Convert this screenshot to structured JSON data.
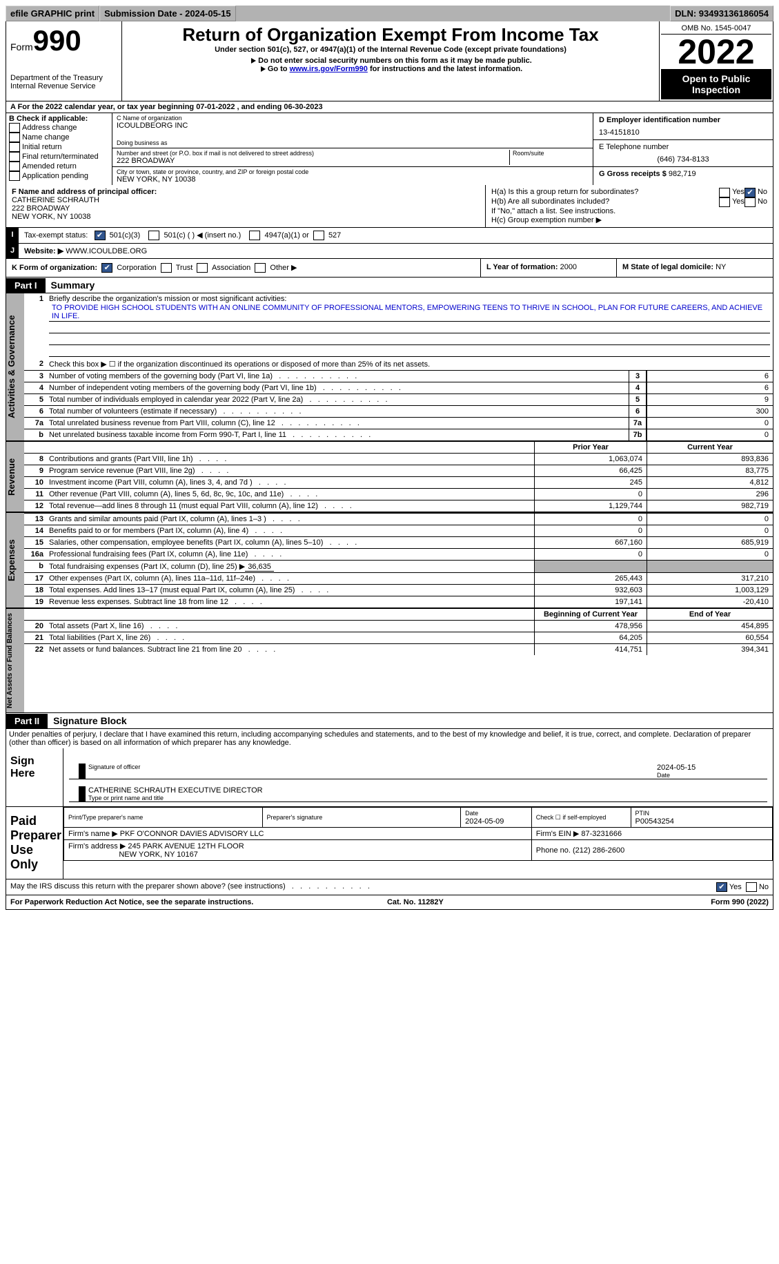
{
  "topbar": {
    "efile": "efile GRAPHIC print",
    "submission_label": "Submission Date - 2024-05-15",
    "dln_label": "DLN: 93493136186054"
  },
  "header": {
    "form_word": "Form",
    "form_num": "990",
    "dept": "Department of the Treasury\nInternal Revenue Service",
    "title": "Return of Organization Exempt From Income Tax",
    "subtitle": "Under section 501(c), 527, or 4947(a)(1) of the Internal Revenue Code (except private foundations)",
    "note1": "Do not enter social security numbers on this form as it may be made public.",
    "note2_pre": "Go to ",
    "note2_link": "www.irs.gov/Form990",
    "note2_post": " for instructions and the latest information.",
    "omb": "OMB No. 1545-0047",
    "year": "2022",
    "inspect": "Open to Public Inspection"
  },
  "line_a": "A For the 2022 calendar year, or tax year beginning 07-01-2022   , and ending 06-30-2023",
  "col_b": {
    "hdr": "B Check if applicable:",
    "items": [
      "Address change",
      "Name change",
      "Initial return",
      "Final return/terminated",
      "Amended return",
      "Application pending"
    ]
  },
  "col_c": {
    "name_lbl": "C Name of organization",
    "name": "ICOULDBEORG INC",
    "dba_lbl": "Doing business as",
    "addr_lbl": "Number and street (or P.O. box if mail is not delivered to street address)",
    "room_lbl": "Room/suite",
    "addr": "222 BROADWAY",
    "city_lbl": "City or town, state or province, country, and ZIP or foreign postal code",
    "city": "NEW YORK, NY  10038"
  },
  "col_d": {
    "ein_lbl": "D Employer identification number",
    "ein": "13-4151810",
    "tel_lbl": "E Telephone number",
    "tel": "(646) 734-8133",
    "gross_lbl": "G Gross receipts $",
    "gross": "982,719"
  },
  "fh": {
    "f_lbl": "F  Name and address of principal officer:",
    "f_name": "CATHERINE SCHRAUTH",
    "f_addr1": "222 BROADWAY",
    "f_addr2": "NEW YORK, NY  10038",
    "ha": "H(a)  Is this a group return for subordinates?",
    "hb": "H(b)  Are all subordinates included?",
    "hb_note": "If \"No,\" attach a list. See instructions.",
    "hc": "H(c)  Group exemption number ▶",
    "yes": "Yes",
    "no": "No"
  },
  "i_lbl": "Tax-exempt status:",
  "i_opts": {
    "a": "501(c)(3)",
    "b": "501(c) (  ) ◀ (insert no.)",
    "c": "4947(a)(1) or",
    "d": "527"
  },
  "j_lbl": "Website: ▶",
  "j_val": "  WWW.ICOULDBE.ORG",
  "k": {
    "lbl": "K Form of organization:",
    "corp": "Corporation",
    "trust": "Trust",
    "assoc": "Association",
    "other": "Other ▶"
  },
  "l": {
    "lbl": "L Year of formation:",
    "val": "2000"
  },
  "m": {
    "lbl": "M State of legal domicile:",
    "val": "NY"
  },
  "part1": {
    "hdr": "Part I",
    "title": "Summary"
  },
  "summary": {
    "mission_lbl": "Briefly describe the organization's mission or most significant activities:",
    "mission": "TO PROVIDE HIGH SCHOOL STUDENTS WITH AN ONLINE COMMUNITY OF PROFESSIONAL MENTORS, EMPOWERING TEENS TO THRIVE IN SCHOOL, PLAN FOR FUTURE CAREERS, AND ACHIEVE IN LIFE.",
    "l2": "Check this box ▶ ☐  if the organization discontinued its operations or disposed of more than 25% of its net assets.",
    "side_ag": "Activities & Governance",
    "side_rev": "Revenue",
    "side_exp": "Expenses",
    "side_net": "Net Assets or Fund Balances",
    "prior": "Prior Year",
    "current": "Current Year",
    "boy": "Beginning of Current Year",
    "eoy": "End of Year",
    "rows_ag": [
      {
        "n": "3",
        "d": "Number of voting members of the governing body (Part VI, line 1a)",
        "b": "3",
        "v": "6"
      },
      {
        "n": "4",
        "d": "Number of independent voting members of the governing body (Part VI, line 1b)",
        "b": "4",
        "v": "6"
      },
      {
        "n": "5",
        "d": "Total number of individuals employed in calendar year 2022 (Part V, line 2a)",
        "b": "5",
        "v": "9"
      },
      {
        "n": "6",
        "d": "Total number of volunteers (estimate if necessary)",
        "b": "6",
        "v": "300"
      },
      {
        "n": "7a",
        "d": "Total unrelated business revenue from Part VIII, column (C), line 12",
        "b": "7a",
        "v": "0"
      },
      {
        "n": "b",
        "d": "Net unrelated business taxable income from Form 990-T, Part I, line 11",
        "b": "7b",
        "v": "0"
      }
    ],
    "rows_rev": [
      {
        "n": "8",
        "d": "Contributions and grants (Part VIII, line 1h)",
        "p": "1,063,074",
        "c": "893,836"
      },
      {
        "n": "9",
        "d": "Program service revenue (Part VIII, line 2g)",
        "p": "66,425",
        "c": "83,775"
      },
      {
        "n": "10",
        "d": "Investment income (Part VIII, column (A), lines 3, 4, and 7d )",
        "p": "245",
        "c": "4,812"
      },
      {
        "n": "11",
        "d": "Other revenue (Part VIII, column (A), lines 5, 6d, 8c, 9c, 10c, and 11e)",
        "p": "0",
        "c": "296"
      },
      {
        "n": "12",
        "d": "Total revenue—add lines 8 through 11 (must equal Part VIII, column (A), line 12)",
        "p": "1,129,744",
        "c": "982,719"
      }
    ],
    "rows_exp": [
      {
        "n": "13",
        "d": "Grants and similar amounts paid (Part IX, column (A), lines 1–3 )",
        "p": "0",
        "c": "0"
      },
      {
        "n": "14",
        "d": "Benefits paid to or for members (Part IX, column (A), line 4)",
        "p": "0",
        "c": "0"
      },
      {
        "n": "15",
        "d": "Salaries, other compensation, employee benefits (Part IX, column (A), lines 5–10)",
        "p": "667,160",
        "c": "685,919"
      },
      {
        "n": "16a",
        "d": "Professional fundraising fees (Part IX, column (A), line 11e)",
        "p": "0",
        "c": "0"
      }
    ],
    "row16b": {
      "n": "b",
      "d": "Total fundraising expenses (Part IX, column (D), line 25) ▶",
      "v": "36,635"
    },
    "rows_exp2": [
      {
        "n": "17",
        "d": "Other expenses (Part IX, column (A), lines 11a–11d, 11f–24e)",
        "p": "265,443",
        "c": "317,210"
      },
      {
        "n": "18",
        "d": "Total expenses. Add lines 13–17 (must equal Part IX, column (A), line 25)",
        "p": "932,603",
        "c": "1,003,129"
      },
      {
        "n": "19",
        "d": "Revenue less expenses. Subtract line 18 from line 12",
        "p": "197,141",
        "c": "-20,410"
      }
    ],
    "rows_net": [
      {
        "n": "20",
        "d": "Total assets (Part X, line 16)",
        "p": "478,956",
        "c": "454,895"
      },
      {
        "n": "21",
        "d": "Total liabilities (Part X, line 26)",
        "p": "64,205",
        "c": "60,554"
      },
      {
        "n": "22",
        "d": "Net assets or fund balances. Subtract line 21 from line 20",
        "p": "414,751",
        "c": "394,341"
      }
    ]
  },
  "part2": {
    "hdr": "Part II",
    "title": "Signature Block"
  },
  "perjury": "Under penalties of perjury, I declare that I have examined this return, including accompanying schedules and statements, and to the best of my knowledge and belief, it is true, correct, and complete. Declaration of preparer (other than officer) is based on all information of which preparer has any knowledge.",
  "sign": {
    "here": "Sign Here",
    "sig_lbl": "Signature of officer",
    "date": "2024-05-15",
    "date_lbl": "Date",
    "name": "CATHERINE SCHRAUTH  EXECUTIVE DIRECTOR",
    "type_lbl": "Type or print name and title"
  },
  "prep": {
    "here": "Paid Preparer Use Only",
    "h1": "Print/Type preparer's name",
    "h2": "Preparer's signature",
    "h3": "Date",
    "h3v": "2024-05-09",
    "h4": "Check ☐ if self-employed",
    "h5": "PTIN",
    "h5v": "P00543254",
    "firm_lbl": "Firm's name    ▶",
    "firm": "PKF O'CONNOR DAVIES ADVISORY LLC",
    "ein_lbl": "Firm's EIN ▶",
    "ein": "87-3231666",
    "addr_lbl": "Firm's address ▶",
    "addr1": "245 PARK AVENUE 12TH FLOOR",
    "addr2": "NEW YORK, NY  10167",
    "phone_lbl": "Phone no.",
    "phone": "(212) 286-2600"
  },
  "discuss": "May the IRS discuss this return with the preparer shown above? (see instructions)",
  "footer": {
    "l": "For Paperwork Reduction Act Notice, see the separate instructions.",
    "m": "Cat. No. 11282Y",
    "r": "Form 990 (2022)"
  }
}
